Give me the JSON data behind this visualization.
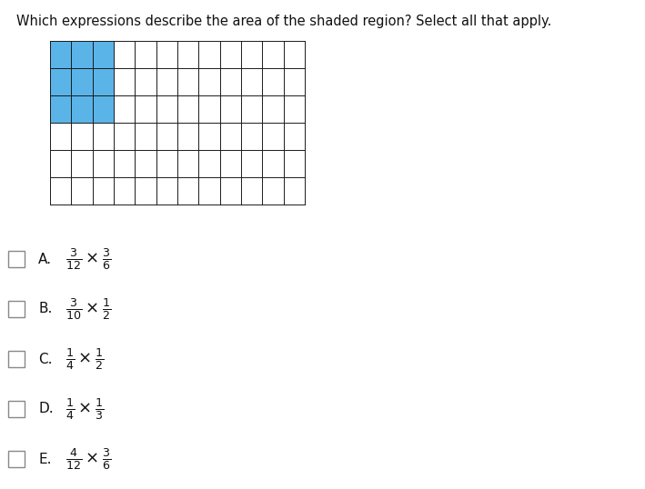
{
  "title": "Which expressions describe the area of the shaded region? Select all that apply.",
  "grid_cols": 12,
  "grid_rows": 6,
  "shaded_cols": 3,
  "shaded_rows": 3,
  "grid_color": "#1a1a1a",
  "shaded_color": "#5ab4e8",
  "bg_color": "#ffffff",
  "options": [
    {
      "label": "A.",
      "expr": "$\\frac{3}{12} \\times \\frac{3}{6}$"
    },
    {
      "label": "B.",
      "expr": "$\\frac{3}{10} \\times \\frac{1}{2}$"
    },
    {
      "label": "C.",
      "expr": "$\\frac{1}{4} \\times \\frac{1}{2}$"
    },
    {
      "label": "D.",
      "expr": "$\\frac{1}{4} \\times \\frac{1}{3}$"
    },
    {
      "label": "E.",
      "expr": "$\\frac{4}{12} \\times \\frac{3}{6}$"
    }
  ],
  "title_fontsize": 10.5,
  "label_fontsize": 11,
  "expr_fontsize": 13,
  "checkbox_size": 0.013
}
